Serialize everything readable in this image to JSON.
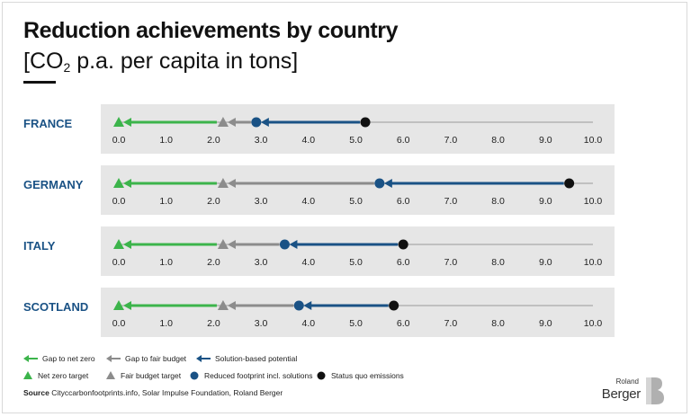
{
  "title": "Reduction achievements by country",
  "subtitle_prefix": "[CO",
  "subtitle_sub": "2",
  "subtitle_suffix": " p.a. per capita in tons]",
  "colors": {
    "net_zero": "#3cb44b",
    "fair_budget": "#8c8c8c",
    "solution": "#1a5285",
    "status_quo": "#111111",
    "country_label": "#1a5285",
    "panel_bg": "#e6e6e6"
  },
  "chart_data": {
    "type": "dot-arrow",
    "xlim": [
      0,
      10
    ],
    "ticks": [
      "0.0",
      "1.0",
      "2.0",
      "3.0",
      "4.0",
      "5.0",
      "6.0",
      "7.0",
      "8.0",
      "9.0",
      "10.0"
    ],
    "rows": [
      {
        "country": "FRANCE",
        "net_zero": 0.0,
        "fair_budget": 2.2,
        "solution": 2.9,
        "status_quo": 5.2
      },
      {
        "country": "GERMANY",
        "net_zero": 0.0,
        "fair_budget": 2.2,
        "solution": 5.5,
        "status_quo": 9.5
      },
      {
        "country": "ITALY",
        "net_zero": 0.0,
        "fair_budget": 2.2,
        "solution": 3.5,
        "status_quo": 6.0
      },
      {
        "country": "SCOTLAND",
        "net_zero": 0.0,
        "fair_budget": 2.2,
        "solution": 3.8,
        "status_quo": 5.8
      }
    ]
  },
  "legend": {
    "arrows": [
      "Gap to net zero",
      "Gap to fair budget",
      "Solution-based potential"
    ],
    "markers": [
      "Net zero target",
      "Fair budget target",
      "Reduced footprint incl. solutions",
      "Status quo emissions"
    ]
  },
  "source": {
    "label": "Source",
    "text": " Cityccarbonfootprints.info, Solar Impulse Foundation, Roland Berger"
  },
  "logo": {
    "line1": "Roland",
    "line2": "Berger"
  }
}
